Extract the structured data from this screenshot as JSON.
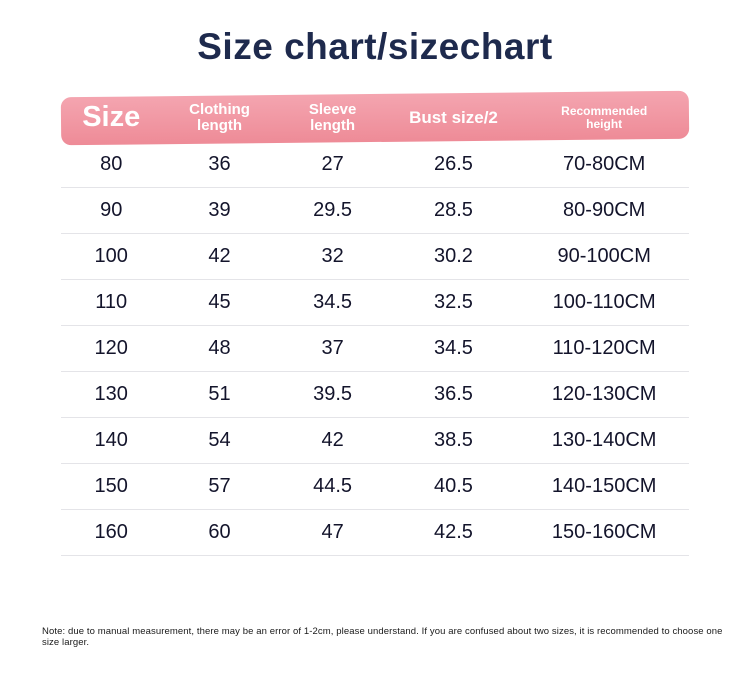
{
  "page": {
    "note": "Note: due to manual measurement, there may be an error of 1-2cm, please understand. If you are confused about two sizes, it is recommended to choose one size larger."
  },
  "colors": {
    "header_bg_top": "#f4a5b0",
    "header_bg_bottom": "#ee8b97",
    "title_text": "#1e2a4d",
    "cell_text": "#13142b",
    "header_text": "#ffffff",
    "row_divider": "#e4e4e8"
  },
  "chart_data": {
    "type": "table",
    "title": "Size chart/sizechart",
    "columns": [
      "Size",
      "Clothing length",
      "Sleeve length",
      "Bust size/2",
      "Recommended height"
    ],
    "rows": [
      [
        "80",
        "36",
        "27",
        "26.5",
        "70-80CM"
      ],
      [
        "90",
        "39",
        "29.5",
        "28.5",
        "80-90CM"
      ],
      [
        "100",
        "42",
        "32",
        "30.2",
        "90-100CM"
      ],
      [
        "110",
        "45",
        "34.5",
        "32.5",
        "100-110CM"
      ],
      [
        "120",
        "48",
        "37",
        "34.5",
        "110-120CM"
      ],
      [
        "130",
        "51",
        "39.5",
        "36.5",
        "120-130CM"
      ],
      [
        "140",
        "54",
        "42",
        "38.5",
        "130-140CM"
      ],
      [
        "150",
        "57",
        "44.5",
        "40.5",
        "140-150CM"
      ],
      [
        "160",
        "60",
        "47",
        "42.5",
        "150-160CM"
      ]
    ]
  }
}
